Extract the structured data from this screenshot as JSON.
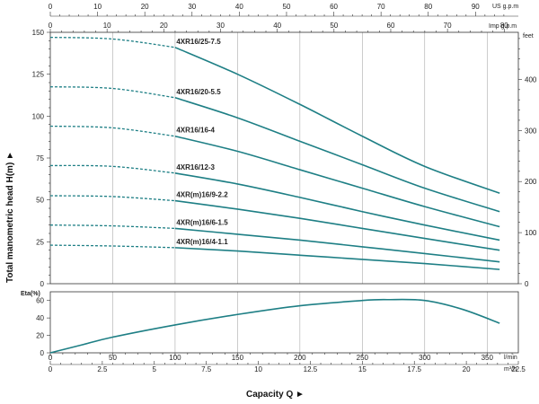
{
  "colors": {
    "curve": "#1e7f85",
    "frame": "#333333",
    "grid": "#9a9a9a"
  },
  "chart_data": {
    "type": "line",
    "top_axes": {
      "us_gpm": {
        "label": "US g.p.m",
        "ticks": [
          0,
          10,
          20,
          30,
          40,
          50,
          60,
          70,
          80,
          90
        ]
      },
      "imp_gpm": {
        "label": "Imp g.p.m",
        "ticks": [
          0,
          10,
          20,
          30,
          40,
          50,
          60,
          70,
          80
        ]
      }
    },
    "bottom_axes": {
      "lmin": {
        "label": "l/min",
        "ticks": [
          0,
          50,
          100,
          150,
          200,
          250,
          300,
          350
        ]
      },
      "m3h": {
        "label": "m³/h",
        "ticks": [
          "0",
          "2.5",
          "5",
          "7.5",
          "10",
          "12.5",
          "15",
          "17.5",
          "20",
          "22.5"
        ]
      }
    },
    "xlabel": "Capacity Q ►",
    "head_chart": {
      "ylabel": "Total manometric head H(m) ►",
      "ylim": [
        0,
        150
      ],
      "y_ticks": [
        0,
        25,
        50,
        75,
        100,
        125,
        150
      ],
      "right_axis": {
        "label": "feet",
        "ticks": [
          0,
          100,
          200,
          300,
          400
        ]
      },
      "series": [
        {
          "name": "4XR16/25-7.5",
          "dashed_end_x": 100,
          "x": [
            0,
            50,
            100,
            150,
            200,
            250,
            300,
            360
          ],
          "y": [
            147,
            146,
            141,
            125,
            107,
            88,
            70,
            54
          ]
        },
        {
          "name": "4XR16/20-5.5",
          "dashed_end_x": 100,
          "x": [
            0,
            50,
            100,
            150,
            200,
            250,
            300,
            360
          ],
          "y": [
            117.5,
            116.5,
            111,
            99,
            85,
            71,
            57,
            43
          ]
        },
        {
          "name": "4XR16/16-4",
          "dashed_end_x": 100,
          "x": [
            0,
            50,
            100,
            150,
            200,
            250,
            300,
            360
          ],
          "y": [
            94,
            93,
            88,
            79,
            68,
            57,
            46,
            34
          ]
        },
        {
          "name": "4XR16/12-3",
          "dashed_end_x": 100,
          "x": [
            0,
            50,
            100,
            150,
            200,
            250,
            300,
            360
          ],
          "y": [
            70.5,
            70,
            66,
            59.5,
            51.5,
            43,
            35,
            26
          ]
        },
        {
          "name": "4XR(m)16/9-2.2",
          "dashed_end_x": 100,
          "x": [
            0,
            50,
            100,
            150,
            200,
            250,
            300,
            360
          ],
          "y": [
            52.5,
            52,
            49.5,
            44.5,
            39,
            33,
            27,
            20
          ]
        },
        {
          "name": "4XR(m)16/6-1.5",
          "dashed_end_x": 100,
          "x": [
            0,
            50,
            100,
            150,
            200,
            250,
            300,
            360
          ],
          "y": [
            35,
            34.5,
            33,
            29.5,
            26,
            22,
            18,
            13
          ]
        },
        {
          "name": "4XR(m)16/4-1.1",
          "dashed_end_x": 100,
          "x": [
            0,
            50,
            100,
            150,
            200,
            250,
            300,
            360
          ],
          "y": [
            23,
            22.5,
            21.5,
            19.5,
            17,
            14.5,
            12,
            8.5
          ]
        }
      ]
    },
    "eta_chart": {
      "ylabel": "Eta(%)",
      "ylim": [
        0,
        70
      ],
      "y_ticks": [
        0,
        20,
        40,
        60
      ],
      "series": [
        {
          "name": "Eta",
          "x": [
            0,
            25,
            50,
            100,
            150,
            200,
            250,
            270,
            300,
            330,
            360
          ],
          "y": [
            0,
            9,
            18,
            32,
            44,
            54,
            60,
            61,
            60,
            50,
            34
          ]
        }
      ]
    }
  }
}
